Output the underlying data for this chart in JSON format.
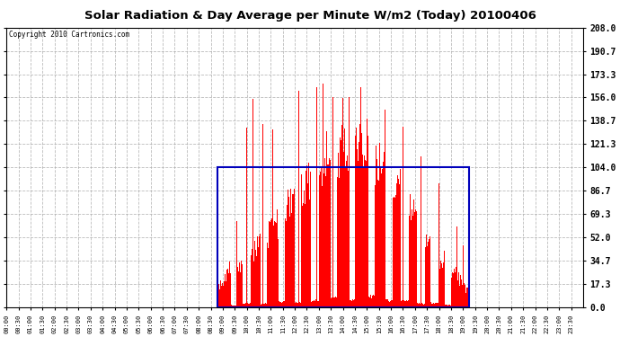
{
  "title": "Solar Radiation & Day Average per Minute W/m2 (Today) 20100406",
  "copyright": "Copyright 2010 Cartronics.com",
  "yticks": [
    0.0,
    17.3,
    34.7,
    52.0,
    69.3,
    86.7,
    104.0,
    121.3,
    138.7,
    156.0,
    173.3,
    190.7,
    208.0
  ],
  "ymax": 208.0,
  "ymin": 0.0,
  "bar_color": "#FF0000",
  "bg_color": "#FFFFFF",
  "plot_bg": "#FFFFFF",
  "grid_color": "#AAAAAA",
  "box_color": "#0000BB",
  "title_color": "#000000",
  "total_minutes": 1440,
  "sunrise_minute": 527,
  "sunset_minute": 1155,
  "day_avg": 104.0,
  "x_tick_interval": 30,
  "x_tick_every_nth_label": 1
}
